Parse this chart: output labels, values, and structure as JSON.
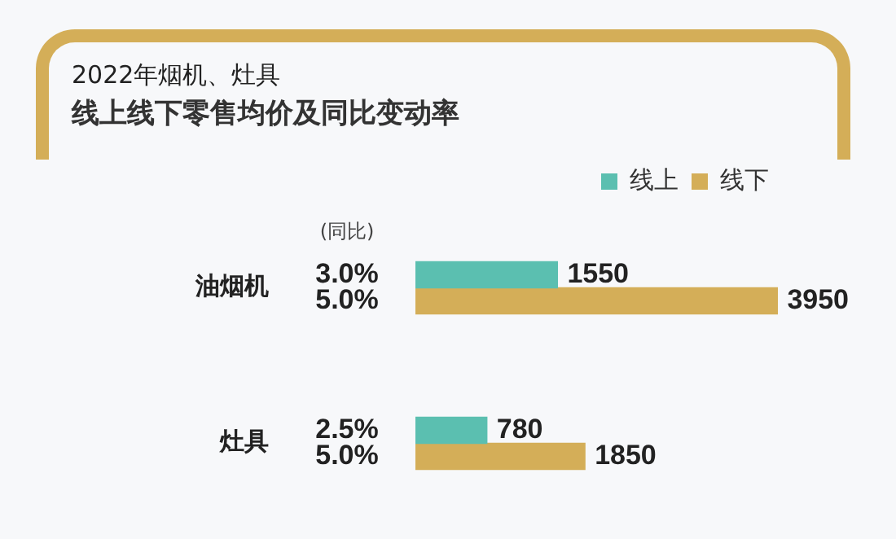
{
  "chart_data": {
    "type": "bar",
    "orientation": "horizontal",
    "title": "2022年烟机、灶具",
    "subtitle": "线上线下零售均价及同比变动率",
    "categories": [
      "油烟机",
      "灶具"
    ],
    "series": [
      {
        "name": "线上",
        "color": "#5bbfb0",
        "values": [
          1550,
          780
        ]
      },
      {
        "name": "线下",
        "color": "#d4ae58",
        "values": [
          3950,
          1850
        ]
      }
    ],
    "annotations": [
      "(同比)",
      "3.0%",
      "5.0%",
      "2.5%",
      "5.0%"
    ],
    "data_labels": true,
    "grid": false,
    "legend": "top right"
  }
}
